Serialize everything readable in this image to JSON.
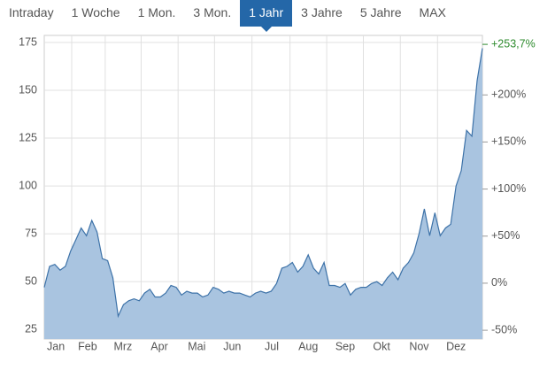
{
  "tabs": [
    "Intraday",
    "1 Woche",
    "1 Mon.",
    "3 Mon.",
    "1 Jahr",
    "3 Jahre",
    "5 Jahre",
    "MAX"
  ],
  "active_tab": "1 Jahr",
  "chart_data": {
    "type": "area",
    "values": [
      47,
      58,
      59,
      56,
      58,
      66,
      72,
      78,
      74,
      82,
      76,
      62,
      61,
      52,
      32,
      38,
      40,
      41,
      40,
      44,
      46,
      42,
      42,
      44,
      48,
      47,
      43,
      45,
      44,
      44,
      42,
      43,
      47,
      46,
      44,
      45,
      44,
      44,
      43,
      42,
      44,
      45,
      44,
      45,
      49,
      57,
      58,
      60,
      55,
      58,
      64,
      57,
      54,
      60,
      48,
      48,
      47,
      49,
      43,
      46,
      47,
      47,
      49,
      50,
      48,
      52,
      55,
      51,
      57,
      60,
      65,
      75,
      88,
      74,
      86,
      74,
      78,
      80,
      100,
      108,
      129,
      126,
      155,
      172
    ],
    "color": "#3d72a8",
    "fill_color": "#a9c4e0",
    "xlim": [
      0,
      83
    ],
    "xticks": [
      {
        "value": 2.2,
        "label": "Jan"
      },
      {
        "value": 8.2,
        "label": "Feb"
      },
      {
        "value": 14.9,
        "label": "Mrz"
      },
      {
        "value": 21.8,
        "label": "Apr"
      },
      {
        "value": 28.9,
        "label": "Mai"
      },
      {
        "value": 35.6,
        "label": "Jun"
      },
      {
        "value": 43.1,
        "label": "Jul"
      },
      {
        "value": 50.0,
        "label": "Aug"
      },
      {
        "value": 57.0,
        "label": "Sep"
      },
      {
        "value": 63.9,
        "label": "Okt"
      },
      {
        "value": 71.0,
        "label": "Nov"
      },
      {
        "value": 78.0,
        "label": "Dez"
      }
    ],
    "ylim": [
      20,
      178.7
    ],
    "yticks": [
      25,
      50,
      75,
      100,
      125,
      150,
      175
    ],
    "y2lim": [
      -59.3,
      263.2
    ],
    "y2ticks": [
      {
        "value": -50,
        "label": "-50%"
      },
      {
        "value": 0,
        "label": "0%"
      },
      {
        "value": 50,
        "label": "+50%"
      },
      {
        "value": 100,
        "label": "+100%"
      },
      {
        "value": 150,
        "label": "+150%"
      },
      {
        "value": 200,
        "label": "+200%"
      }
    ],
    "last_change": {
      "value": 253.7,
      "label": "+253,7%"
    },
    "last_change_color": "#2e8b2e",
    "grid": true
  }
}
